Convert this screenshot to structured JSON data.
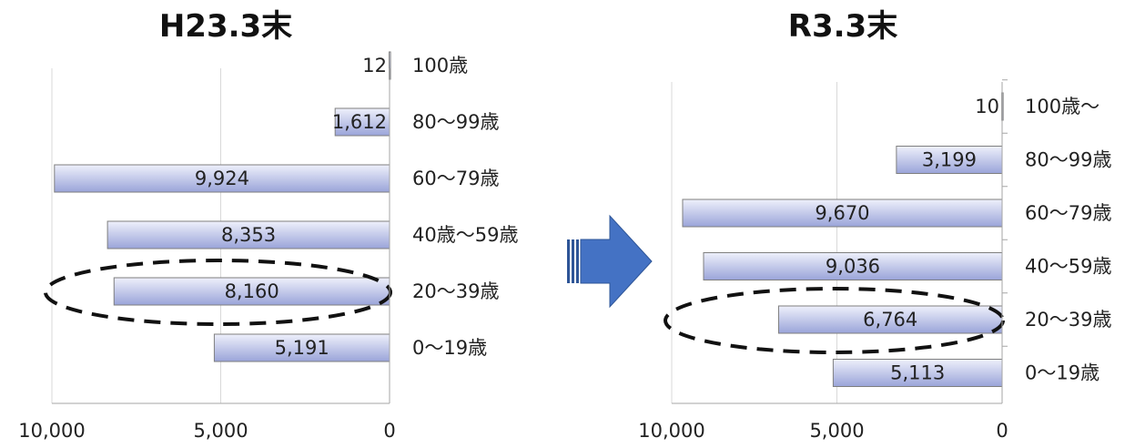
{
  "chart_data": [
    {
      "type": "bar",
      "orientation": "horizontal-reversed",
      "title": "H23.3末",
      "categories": [
        "100歳",
        "80～99歳",
        "60～79歳",
        "40歳～59歳",
        "20～39歳",
        "0～19歳"
      ],
      "values": [
        12,
        1612,
        9924,
        8353,
        8160,
        5191
      ],
      "value_labels": [
        "12",
        "1,612",
        "9,924",
        "8,353",
        "8,160",
        "5,191"
      ],
      "xlim": [
        0,
        10000
      ],
      "x_ticks": [
        "10,000",
        "5,000",
        "0"
      ],
      "grid": true,
      "highlighted_category": "20～39歳"
    },
    {
      "type": "bar",
      "orientation": "horizontal-reversed",
      "title": "R3.3末",
      "categories": [
        "100歳～",
        "80～99歳",
        "60～79歳",
        "40～59歳",
        "20～39歳",
        "0～19歳"
      ],
      "values": [
        10,
        3199,
        9670,
        9036,
        6764,
        5113
      ],
      "value_labels": [
        "10",
        "3,199",
        "9,670",
        "9,036",
        "6,764",
        "5,113"
      ],
      "xlim": [
        0,
        10000
      ],
      "x_ticks": [
        "10,000",
        "5,000",
        "0"
      ],
      "grid": true,
      "highlighted_category": "20～39歳"
    }
  ],
  "colors": {
    "bar_light": "#eef0fb",
    "bar_dark": "#9aa4d9",
    "bar_border": "#7f7f7f",
    "arrow": "#4472c4",
    "arrow_stripe": "#2e5597",
    "grid": "#d9d9d9",
    "axis": "#a6a6a6"
  },
  "decorations": {
    "transition_arrow": "right-arrow-icon",
    "highlight": "dashed-ellipse"
  }
}
